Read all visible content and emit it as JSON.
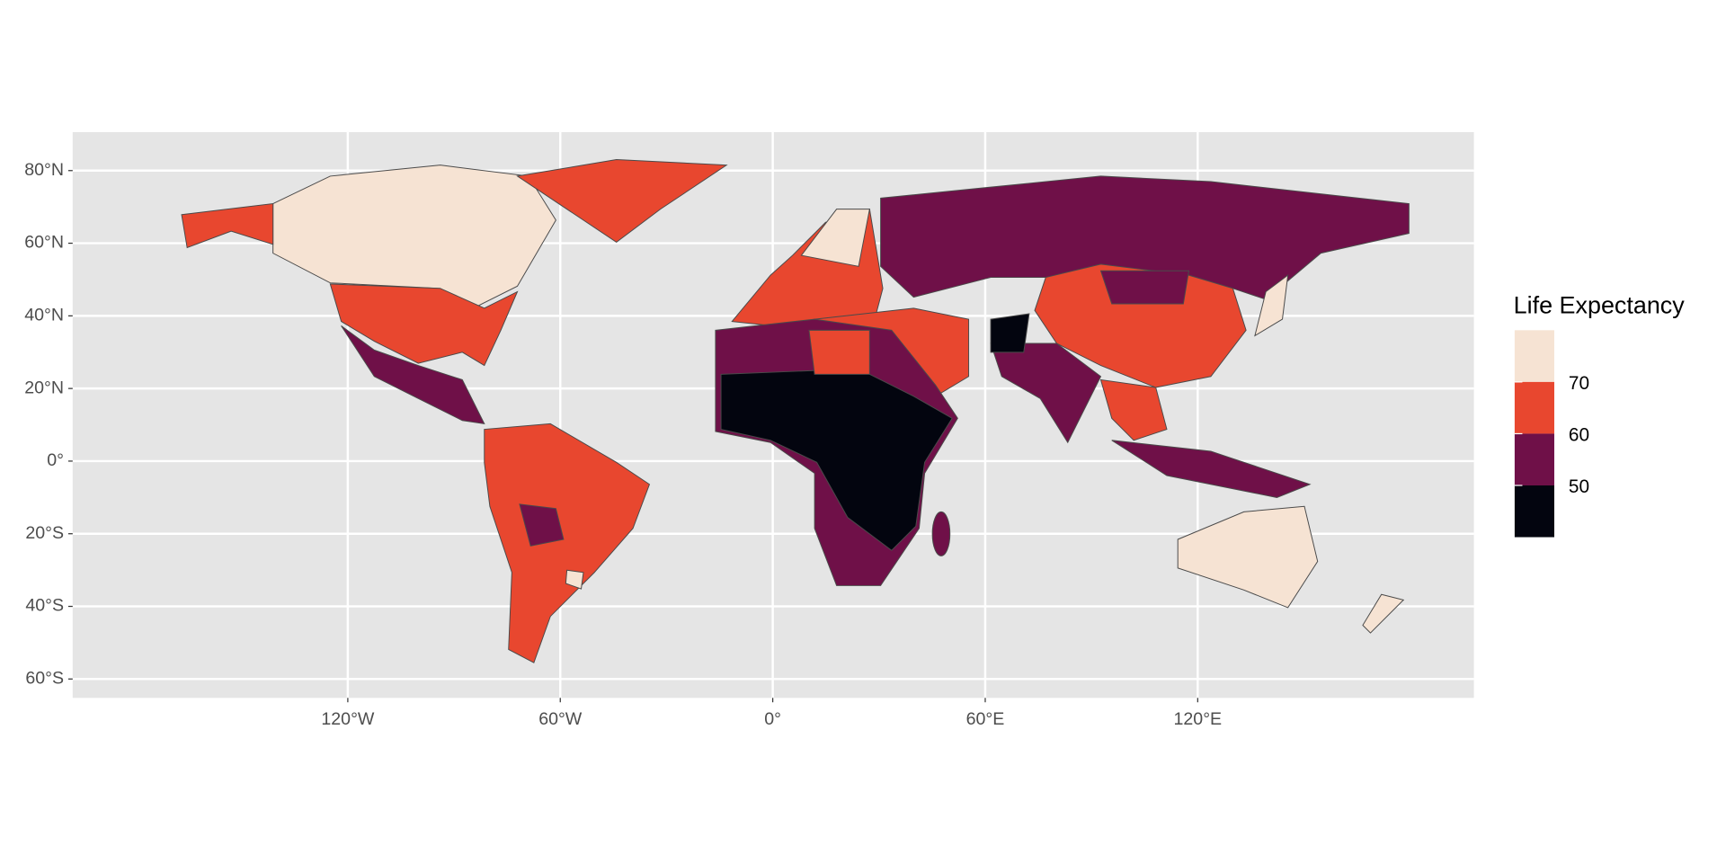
{
  "map": {
    "legend_title": "Life Expectancy",
    "legend_breaks": [
      70,
      60,
      50
    ],
    "legend_colors": [
      "#f6e3d3",
      "#e8472f",
      "#6f1048",
      "#03050f"
    ],
    "xlim": [
      -197.7,
      198
    ],
    "ylim": [
      -65.2,
      90.6
    ],
    "xticks": [
      {
        "value": -120,
        "label": "120°W"
      },
      {
        "value": -60,
        "label": "60°W"
      },
      {
        "value": 0,
        "label": "0°"
      },
      {
        "value": 60,
        "label": "60°E"
      },
      {
        "value": 120,
        "label": "120°E"
      }
    ],
    "yticks": [
      {
        "value": 80,
        "label": "80°N"
      },
      {
        "value": 60,
        "label": "60°N"
      },
      {
        "value": 40,
        "label": "40°N"
      },
      {
        "value": 20,
        "label": "20°N"
      },
      {
        "value": 0,
        "label": "0°"
      },
      {
        "value": -20,
        "label": "20°S"
      },
      {
        "value": -40,
        "label": "40°S"
      },
      {
        "value": -60,
        "label": "60°S"
      }
    ],
    "grid": true
  }
}
